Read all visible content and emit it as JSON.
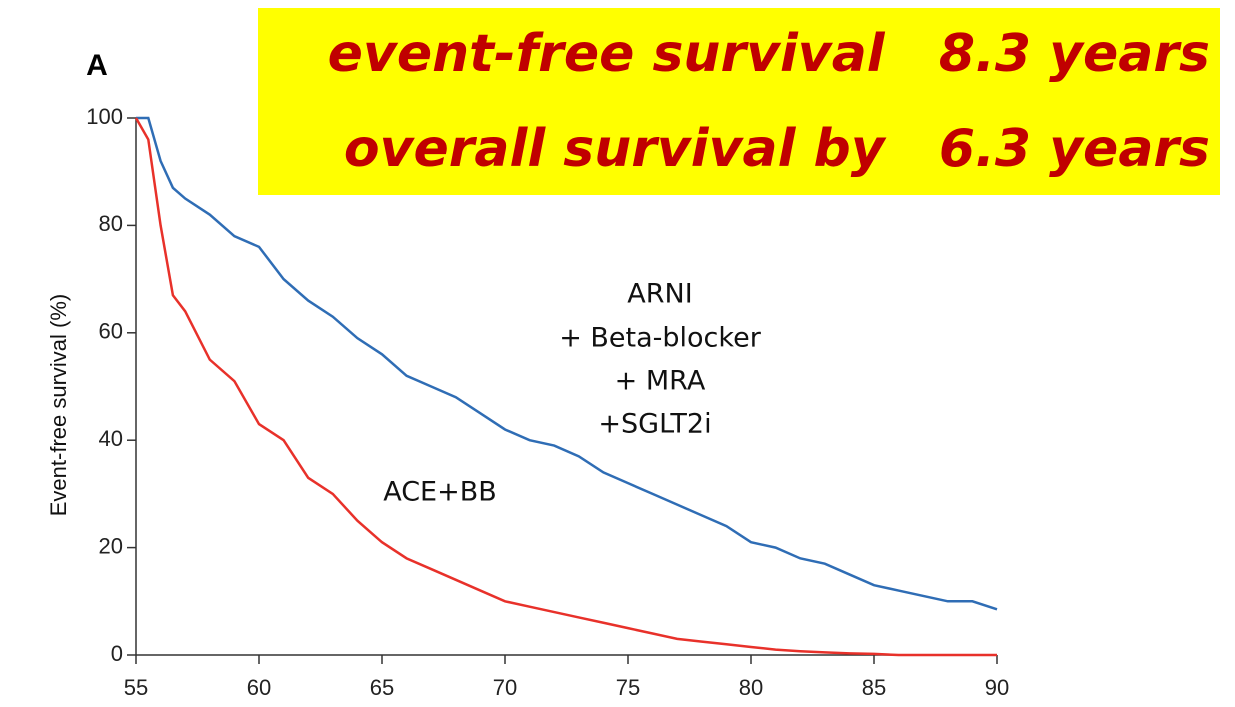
{
  "panel_label": "A",
  "banner": [
    "event-free survival   8.3 years",
    "overall survival by   6.3 years"
  ],
  "chart_data": {
    "type": "line",
    "ylabel": "Event-free survival (%)",
    "x": [
      55,
      55.5,
      56,
      56.5,
      57,
      58,
      59,
      60,
      61,
      62,
      63,
      64,
      65,
      66,
      67,
      68,
      69,
      70,
      71,
      72,
      73,
      74,
      75,
      76,
      77,
      78,
      79,
      80,
      81,
      82,
      83,
      84,
      85,
      86,
      87,
      88,
      89,
      90
    ],
    "series": [
      {
        "name": "ARNI + Beta-blocker + MRA +SGLT2i",
        "color": "#2f6db5",
        "values": [
          100,
          100,
          92,
          87,
          85,
          82,
          78,
          76,
          70,
          66,
          63,
          59,
          56,
          52,
          50,
          48,
          45,
          42,
          40,
          39,
          37,
          34,
          32,
          30,
          28,
          26,
          24,
          21,
          20,
          18,
          17,
          15,
          13,
          12,
          11,
          10,
          10,
          8.5
        ]
      },
      {
        "name": "ACE+BB",
        "color": "#e8312a",
        "values": [
          100,
          96,
          80,
          67,
          64,
          55,
          51,
          43,
          40,
          33,
          30,
          25,
          21,
          18,
          16,
          14,
          12,
          10,
          9,
          8,
          7,
          6,
          5,
          4,
          3,
          2.5,
          2,
          1.5,
          1,
          0.7,
          0.5,
          0.3,
          0.2,
          0,
          0,
          0,
          0,
          0
        ]
      }
    ],
    "annotations": [
      "ARNI",
      "+ Beta-blocker",
      "+ MRA",
      "+SGLT2i"
    ],
    "xlim": [
      55,
      90
    ],
    "ylim": [
      0,
      100
    ],
    "xticks": [
      55,
      60,
      65,
      70,
      75,
      80,
      85,
      90
    ],
    "yticks": [
      0,
      20,
      40,
      60,
      80,
      100
    ]
  }
}
